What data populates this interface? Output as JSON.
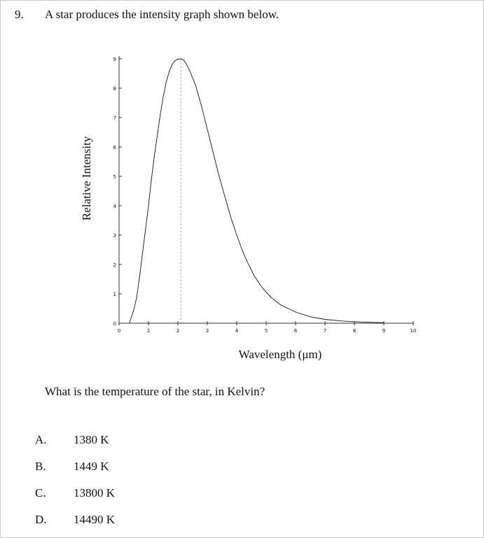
{
  "question": {
    "number": "9.",
    "text": "A star produces the intensity graph shown below.",
    "prompt": "What is the temperature of the star, in Kelvin?"
  },
  "choices": [
    {
      "letter": "A.",
      "text": "1380 K"
    },
    {
      "letter": "B.",
      "text": "1449 K"
    },
    {
      "letter": "C.",
      "text": "13800 K"
    },
    {
      "letter": "D.",
      "text": "14490 K"
    }
  ],
  "chart_data": {
    "type": "line",
    "title": "",
    "xlabel": "Wavelength (μm)",
    "ylabel": "Relative Intensity",
    "xlim": [
      0,
      10
    ],
    "ylim": [
      0,
      9
    ],
    "x_ticks": [
      "0",
      "1",
      "2",
      "3",
      "4",
      "5",
      "6",
      "7",
      "8",
      "9",
      "10"
    ],
    "y_ticks": [
      "0",
      "1",
      "2",
      "3",
      "4",
      "5",
      "6",
      "7",
      "8",
      "9"
    ],
    "peak_wavelength": 2.1,
    "peak_marker": "dashed vertical line at peak",
    "series": [
      {
        "x": [
          0.35,
          0.5,
          0.6,
          0.7,
          0.8,
          0.9,
          1.0,
          1.1,
          1.2,
          1.3,
          1.4,
          1.5,
          1.6,
          1.7,
          1.8,
          1.9,
          2.0,
          2.1,
          2.2,
          2.3,
          2.4,
          2.6,
          2.8,
          3.0,
          3.2,
          3.4,
          3.6,
          3.8,
          4.0,
          4.2,
          4.4,
          4.6,
          4.8,
          5.0,
          5.2,
          5.5,
          6.0,
          6.5,
          7.0,
          7.5,
          8.0,
          8.5,
          9.0
        ],
        "y": [
          0.0,
          0.45,
          0.9,
          1.6,
          2.4,
          3.2,
          4.0,
          4.9,
          5.7,
          6.4,
          7.1,
          7.7,
          8.2,
          8.55,
          8.8,
          8.93,
          8.99,
          9.0,
          8.95,
          8.8,
          8.6,
          8.1,
          7.4,
          6.6,
          5.8,
          5.0,
          4.3,
          3.6,
          3.0,
          2.45,
          2.0,
          1.6,
          1.3,
          1.05,
          0.85,
          0.62,
          0.38,
          0.22,
          0.13,
          0.08,
          0.05,
          0.03,
          0.02
        ],
        "color": "#111111"
      }
    ]
  }
}
